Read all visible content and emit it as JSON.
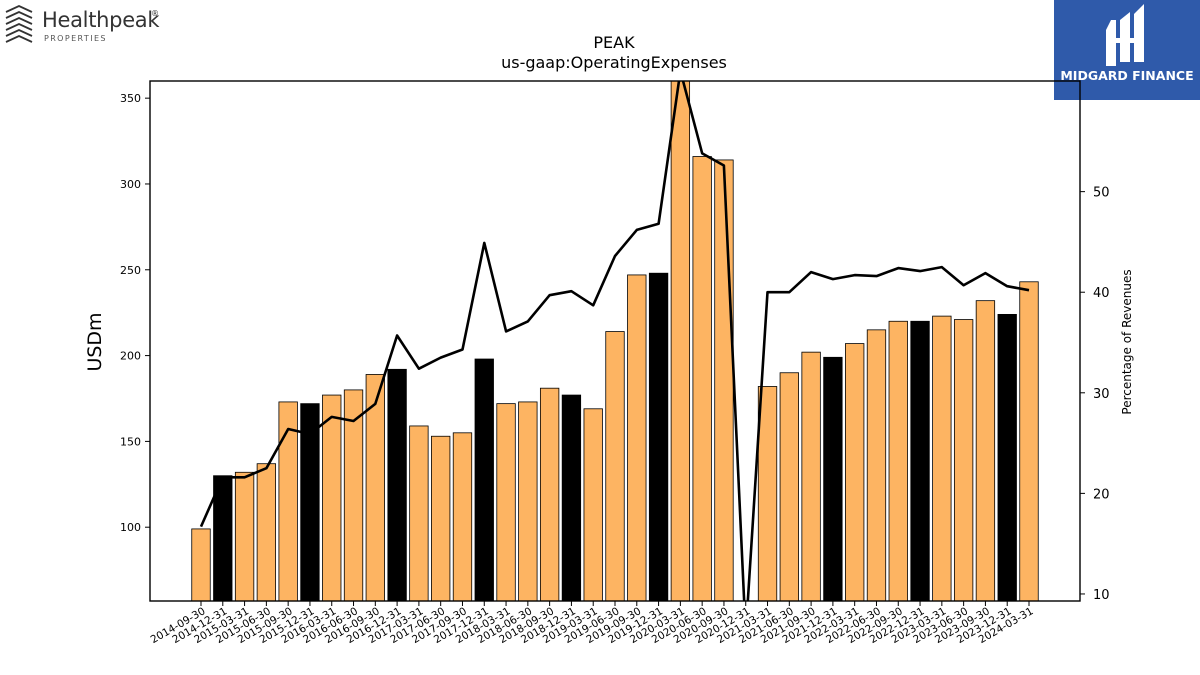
{
  "logos": {
    "left": {
      "name": "Healthpeak",
      "mark": "®",
      "sub": "PROPERTIES"
    },
    "right": {
      "name": "MIDGARD FINANCE"
    }
  },
  "chart_data": {
    "type": "bar",
    "title": "PEAK",
    "subtitle": "us-gaap:OperatingExpenses",
    "ylabel": "USDm",
    "y2label": "Percentage of Revenues",
    "ylim": [
      57,
      360
    ],
    "y2lim": [
      9.3,
      61
    ],
    "yticks": [
      100,
      150,
      200,
      250,
      300,
      350
    ],
    "y2ticks": [
      10,
      20,
      30,
      40,
      50
    ],
    "colors": {
      "bar": "#fdb462",
      "bar_q4": "#000000",
      "line": "#000000"
    },
    "categories": [
      "2014-09-30",
      "2014-12-31",
      "2015-03-31",
      "2015-06-30",
      "2015-09-30",
      "2015-12-31",
      "2016-03-31",
      "2016-06-30",
      "2016-09-30",
      "2016-12-31",
      "2017-03-31",
      "2017-06-30",
      "2017-09-30",
      "2017-12-31",
      "2018-03-31",
      "2018-06-30",
      "2018-09-30",
      "2018-12-31",
      "2019-03-31",
      "2019-06-30",
      "2019-09-30",
      "2019-12-31",
      "2020-03-31",
      "2020-06-30",
      "2020-09-30",
      "2020-12-31",
      "2021-03-31",
      "2021-06-30",
      "2021-09-30",
      "2021-12-31",
      "2022-03-31",
      "2022-06-30",
      "2022-09-30",
      "2022-12-31",
      "2023-03-31",
      "2023-06-30",
      "2023-09-30",
      "2023-12-31",
      "2024-03-31"
    ],
    "series": [
      {
        "type": "bar",
        "values": [
          99,
          130,
          132,
          137,
          173,
          172,
          177,
          180,
          189,
          192,
          159,
          153,
          155,
          198,
          172,
          173,
          181,
          177,
          169,
          214,
          247,
          248,
          362,
          316,
          314,
          null,
          182,
          190,
          202,
          199,
          207,
          215,
          220,
          220,
          223,
          221,
          232,
          224,
          243
        ],
        "highlight": [
          false,
          true,
          false,
          false,
          false,
          true,
          false,
          false,
          false,
          true,
          false,
          false,
          false,
          true,
          false,
          false,
          false,
          true,
          false,
          false,
          false,
          true,
          false,
          false,
          false,
          false,
          false,
          false,
          false,
          true,
          false,
          false,
          false,
          true,
          false,
          false,
          false,
          true,
          false
        ]
      },
      {
        "type": "line",
        "axis": "right",
        "values": [
          16.7,
          21.6,
          21.6,
          22.5,
          26.4,
          25.9,
          27.6,
          27.2,
          28.9,
          35.7,
          32.4,
          33.5,
          34.3,
          44.9,
          36.1,
          37.1,
          39.7,
          40.1,
          38.7,
          43.6,
          46.2,
          46.8,
          62,
          53.8,
          52.6,
          6,
          40,
          40,
          42,
          41.3,
          41.7,
          41.6,
          42.4,
          42.1,
          42.5,
          40.7,
          41.9,
          40.6,
          40.2
        ]
      }
    ]
  }
}
